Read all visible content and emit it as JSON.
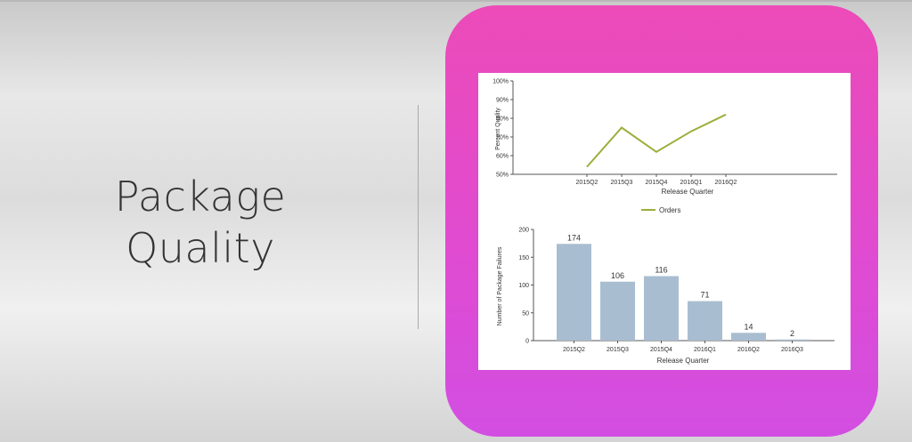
{
  "slide": {
    "title_line1": "Package",
    "title_line2": "Quality"
  },
  "colors": {
    "card_top": "#ec4bb8",
    "card_bottom": "#d24ee2",
    "line_series": "#9aaf3c",
    "bar_series": "#a9bdd0"
  },
  "chart_data": [
    {
      "type": "line",
      "categories": [
        "2015Q2",
        "2015Q3",
        "2015Q4",
        "2016Q1",
        "2016Q2"
      ],
      "series": [
        {
          "name": "Orders",
          "values": [
            54,
            75,
            62,
            73,
            82
          ]
        }
      ],
      "ylabel": "Percent Quality",
      "xlabel": "Release Quarter",
      "ylim": [
        50,
        100
      ],
      "yticks": [
        "50%",
        "60%",
        "70%",
        "80%",
        "90%",
        "100%"
      ],
      "legend": "bottom-center",
      "grid": false
    },
    {
      "type": "bar",
      "categories": [
        "2015Q2",
        "2015Q3",
        "2015Q4",
        "2016Q1",
        "2016Q2",
        "2016Q3"
      ],
      "values": [
        174,
        106,
        116,
        71,
        14,
        2
      ],
      "ylabel": "Number of Package Failures",
      "xlabel": "Release Quarter",
      "ylim": [
        0,
        200
      ],
      "yticks": [
        "0",
        "50",
        "100",
        "150",
        "200"
      ],
      "grid": false
    }
  ]
}
